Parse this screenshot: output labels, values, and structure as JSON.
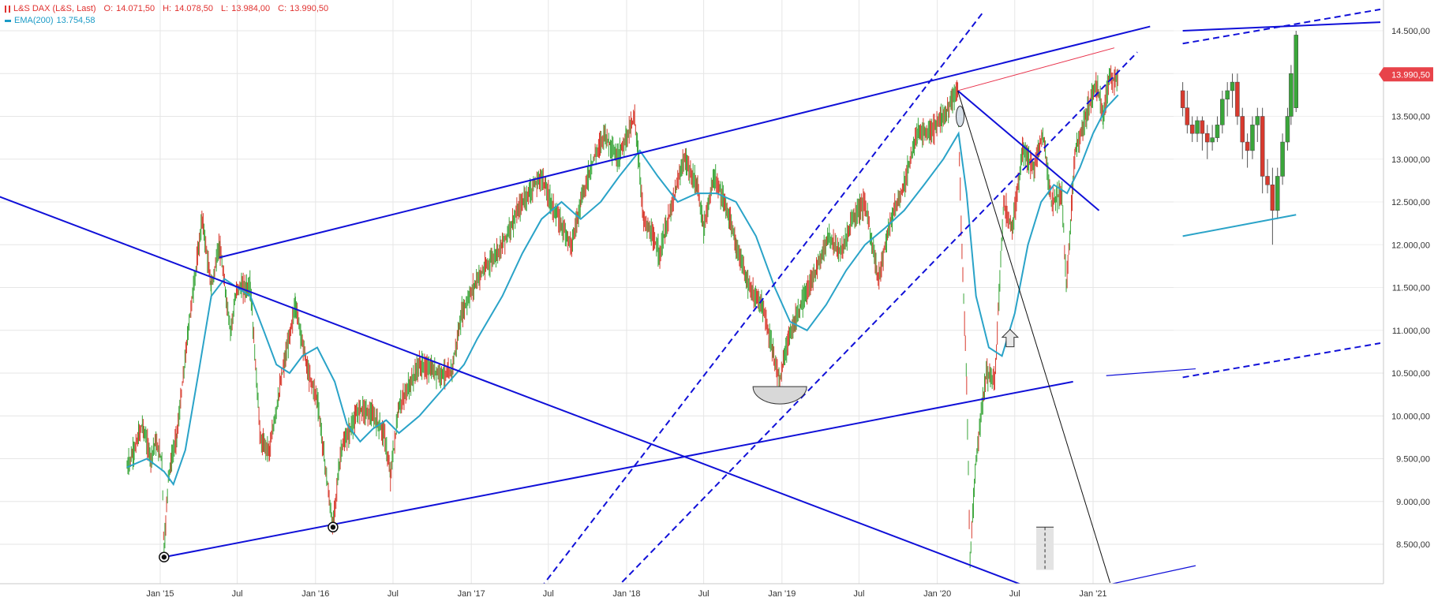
{
  "legend": {
    "instrument": "L&S DAX (L&S, Last)",
    "open_label": "O:",
    "open": "14.071,50",
    "high_label": "H:",
    "high": "14.078,50",
    "low_label": "L:",
    "low": "13.984,00",
    "close_label": "C:",
    "close": "13.990,50",
    "ema_label": "EMA(200)",
    "ema_value": "13.754,58"
  },
  "colors": {
    "up": "#3aa63a",
    "down": "#d83a2e",
    "ema": "#2aa3c8",
    "trendline": "#1010d8",
    "pink_line": "#e8304a",
    "black_line": "#111111",
    "price_tag": "#e8434a",
    "grid": "#e6e6e6"
  },
  "chart_data": {
    "type": "candlestick",
    "title": "",
    "x_ticks": [
      "Jan '15",
      "Jul",
      "Jan '16",
      "Jul",
      "Jan '17",
      "Jul",
      "Jan '18",
      "Jul",
      "Jan '19",
      "Jul",
      "Jan '20",
      "Jul",
      "Jan '21"
    ],
    "x_tick_dates": [
      "2015-01-01",
      "2015-07-01",
      "2016-01-01",
      "2016-07-01",
      "2017-01-01",
      "2017-07-01",
      "2018-01-01",
      "2018-07-01",
      "2019-01-01",
      "2019-07-01",
      "2020-01-01",
      "2020-07-01",
      "2021-01-01"
    ],
    "y_ticks": [
      "14.500,00",
      "14.000,00",
      "13.500,00",
      "13.000,00",
      "12.500,00",
      "12.000,00",
      "11.500,00",
      "11.000,00",
      "10.500,00",
      "10.000,00",
      "9.500,00",
      "9.000,00",
      "8.500,00"
    ],
    "y_tick_values": [
      14500,
      14000,
      13500,
      13000,
      12500,
      12000,
      11500,
      11000,
      10500,
      10000,
      9500,
      9000,
      8500
    ],
    "ylim": [
      8200,
      14750
    ],
    "grid": true,
    "last_price_label": "13.990,50",
    "last_price": 13990.5,
    "price_path": [
      [
        "2014-10-15",
        9400
      ],
      [
        "2014-11-01",
        9600
      ],
      [
        "2014-11-20",
        9900
      ],
      [
        "2014-12-10",
        9500
      ],
      [
        "2014-12-20",
        9700
      ],
      [
        "2015-01-05",
        9500
      ],
      [
        "2015-01-10",
        8400
      ],
      [
        "2015-01-20",
        9300
      ],
      [
        "2015-02-10",
        9800
      ],
      [
        "2015-03-10",
        11100
      ],
      [
        "2015-04-10",
        12300
      ],
      [
        "2015-05-01",
        11500
      ],
      [
        "2015-05-20",
        12000
      ],
      [
        "2015-06-15",
        11000
      ],
      [
        "2015-07-01",
        11500
      ],
      [
        "2015-08-01",
        11500
      ],
      [
        "2015-08-25",
        9700
      ],
      [
        "2015-09-15",
        9600
      ],
      [
        "2015-10-15",
        10500
      ],
      [
        "2015-11-15",
        11300
      ],
      [
        "2015-12-15",
        10500
      ],
      [
        "2016-01-05",
        10200
      ],
      [
        "2016-02-10",
        8700
      ],
      [
        "2016-03-01",
        9600
      ],
      [
        "2016-04-15",
        10100
      ],
      [
        "2016-05-15",
        10000
      ],
      [
        "2016-06-10",
        9800
      ],
      [
        "2016-06-25",
        9300
      ],
      [
        "2016-07-15",
        10100
      ],
      [
        "2016-09-01",
        10600
      ],
      [
        "2016-10-15",
        10500
      ],
      [
        "2016-11-15",
        10500
      ],
      [
        "2016-12-10",
        11200
      ],
      [
        "2017-01-15",
        11600
      ],
      [
        "2017-03-15",
        12000
      ],
      [
        "2017-05-01",
        12500
      ],
      [
        "2017-06-15",
        12800
      ],
      [
        "2017-07-15",
        12400
      ],
      [
        "2017-08-25",
        12000
      ],
      [
        "2017-09-15",
        12500
      ],
      [
        "2017-10-15",
        13000
      ],
      [
        "2017-11-10",
        13300
      ],
      [
        "2017-12-10",
        13000
      ],
      [
        "2018-01-20",
        13500
      ],
      [
        "2018-02-10",
        12300
      ],
      [
        "2018-03-20",
        11900
      ],
      [
        "2018-05-15",
        13000
      ],
      [
        "2018-06-15",
        12700
      ],
      [
        "2018-07-01",
        12200
      ],
      [
        "2018-07-25",
        12800
      ],
      [
        "2018-08-25",
        12400
      ],
      [
        "2018-09-15",
        12000
      ],
      [
        "2018-10-15",
        11500
      ],
      [
        "2018-11-15",
        11300
      ],
      [
        "2018-12-27",
        10400
      ],
      [
        "2019-01-15",
        10900
      ],
      [
        "2019-02-15",
        11300
      ],
      [
        "2019-03-15",
        11600
      ],
      [
        "2019-04-20",
        12100
      ],
      [
        "2019-05-20",
        11900
      ],
      [
        "2019-06-15",
        12300
      ],
      [
        "2019-07-15",
        12500
      ],
      [
        "2019-08-15",
        11600
      ],
      [
        "2019-09-15",
        12300
      ],
      [
        "2019-10-15",
        12700
      ],
      [
        "2019-11-15",
        13300
      ],
      [
        "2019-12-15",
        13300
      ],
      [
        "2020-01-15",
        13500
      ],
      [
        "2020-02-18",
        13800
      ],
      [
        "2020-02-28",
        11900
      ],
      [
        "2020-03-10",
        10400
      ],
      [
        "2020-03-18",
        8300
      ],
      [
        "2020-04-01",
        9500
      ],
      [
        "2020-04-25",
        10500
      ],
      [
        "2020-05-15",
        10400
      ],
      [
        "2020-06-05",
        12500
      ],
      [
        "2020-06-25",
        12200
      ],
      [
        "2020-07-20",
        13100
      ],
      [
        "2020-08-15",
        12900
      ],
      [
        "2020-09-05",
        13300
      ],
      [
        "2020-09-25",
        12500
      ],
      [
        "2020-10-20",
        12600
      ],
      [
        "2020-10-30",
        11500
      ],
      [
        "2020-11-20",
        13100
      ],
      [
        "2020-12-15",
        13500
      ],
      [
        "2021-01-08",
        13900
      ],
      [
        "2021-01-25",
        13500
      ],
      [
        "2021-02-10",
        14000
      ],
      [
        "2021-02-20",
        13900
      ],
      [
        "2021-03-01",
        14000
      ]
    ],
    "ema_path": [
      [
        "2014-10-15",
        9400
      ],
      [
        "2014-12-01",
        9500
      ],
      [
        "2015-01-10",
        9350
      ],
      [
        "2015-02-01",
        9200
      ],
      [
        "2015-03-01",
        9600
      ],
      [
        "2015-04-01",
        10500
      ],
      [
        "2015-05-01",
        11400
      ],
      [
        "2015-06-01",
        11600
      ],
      [
        "2015-07-01",
        11500
      ],
      [
        "2015-08-01",
        11400
      ],
      [
        "2015-09-01",
        11000
      ],
      [
        "2015-10-01",
        10600
      ],
      [
        "2015-11-01",
        10500
      ],
      [
        "2015-12-01",
        10700
      ],
      [
        "2016-01-05",
        10800
      ],
      [
        "2016-02-15",
        10400
      ],
      [
        "2016-03-15",
        9900
      ],
      [
        "2016-04-15",
        9700
      ],
      [
        "2016-05-15",
        9850
      ],
      [
        "2016-06-15",
        9950
      ],
      [
        "2016-07-15",
        9800
      ],
      [
        "2016-09-01",
        10000
      ],
      [
        "2016-10-15",
        10250
      ],
      [
        "2016-12-15",
        10600
      ],
      [
        "2017-01-15",
        10900
      ],
      [
        "2017-03-15",
        11400
      ],
      [
        "2017-05-01",
        11900
      ],
      [
        "2017-06-15",
        12300
      ],
      [
        "2017-08-01",
        12500
      ],
      [
        "2017-09-15",
        12300
      ],
      [
        "2017-11-01",
        12500
      ],
      [
        "2017-12-15",
        12800
      ],
      [
        "2018-02-01",
        13100
      ],
      [
        "2018-03-15",
        12800
      ],
      [
        "2018-05-01",
        12500
      ],
      [
        "2018-06-15",
        12600
      ],
      [
        "2018-08-01",
        12600
      ],
      [
        "2018-09-15",
        12500
      ],
      [
        "2018-11-01",
        12100
      ],
      [
        "2018-12-15",
        11500
      ],
      [
        "2019-01-20",
        11100
      ],
      [
        "2019-03-01",
        11000
      ],
      [
        "2019-04-15",
        11300
      ],
      [
        "2019-06-01",
        11700
      ],
      [
        "2019-07-15",
        12000
      ],
      [
        "2019-09-01",
        12200
      ],
      [
        "2019-10-15",
        12400
      ],
      [
        "2019-12-01",
        12700
      ],
      [
        "2020-01-15",
        13000
      ],
      [
        "2020-02-20",
        13300
      ],
      [
        "2020-03-10",
        12600
      ],
      [
        "2020-04-01",
        11400
      ],
      [
        "2020-05-01",
        10800
      ],
      [
        "2020-06-01",
        10700
      ],
      [
        "2020-07-01",
        11200
      ],
      [
        "2020-08-01",
        12000
      ],
      [
        "2020-09-01",
        12500
      ],
      [
        "2020-10-01",
        12700
      ],
      [
        "2020-11-01",
        12600
      ],
      [
        "2020-12-01",
        12900
      ],
      [
        "2021-01-01",
        13300
      ],
      [
        "2021-02-01",
        13600
      ],
      [
        "2021-03-01",
        13750
      ]
    ],
    "zoom_inset": {
      "x_range": [
        "2020-08-01",
        "2021-03-01"
      ],
      "candles": [
        [
          "2020-08-01",
          13800,
          13900,
          13500,
          13600
        ],
        [
          "2020-08-10",
          13600,
          13800,
          13300,
          13400
        ],
        [
          "2020-08-20",
          13400,
          13500,
          13200,
          13300
        ],
        [
          "2020-08-30",
          13300,
          13500,
          13200,
          13450
        ],
        [
          "2020-09-09",
          13450,
          13500,
          13100,
          13300
        ],
        [
          "2020-09-19",
          13300,
          13400,
          13000,
          13200
        ],
        [
          "2020-09-29",
          13200,
          13400,
          13100,
          13250
        ],
        [
          "2020-10-09",
          13250,
          13500,
          13200,
          13400
        ],
        [
          "2020-10-19",
          13400,
          13800,
          13300,
          13700
        ],
        [
          "2020-10-29",
          13700,
          13900,
          13500,
          13800
        ],
        [
          "2020-11-08",
          13800,
          14000,
          13600,
          13900
        ],
        [
          "2020-11-18",
          13900,
          14000,
          13400,
          13500
        ],
        [
          "2020-11-28",
          13500,
          13600,
          13000,
          13200
        ],
        [
          "2020-12-08",
          13200,
          13300,
          12900,
          13100
        ],
        [
          "2020-12-18",
          13100,
          13500,
          13000,
          13400
        ],
        [
          "2020-12-28",
          13400,
          13600,
          13200,
          13500
        ],
        [
          "2021-01-07",
          13500,
          13600,
          12600,
          12800
        ],
        [
          "2021-01-17",
          12800,
          13000,
          12600,
          12700
        ],
        [
          "2021-01-27",
          12700,
          12900,
          12000,
          12400
        ],
        [
          "2021-02-06",
          12400,
          12900,
          12300,
          12800
        ],
        [
          "2021-02-16",
          12800,
          13300,
          12700,
          13200
        ],
        [
          "2021-02-26",
          13200,
          13600,
          13100,
          13500
        ],
        [
          "2021-03-05",
          13500,
          14100,
          13400,
          14000
        ],
        [
          "2021-03-15",
          13600,
          14500,
          13550,
          14450
        ]
      ],
      "ema": [
        [
          "2020-08-01",
          12100
        ],
        [
          "2021-03-15",
          12350
        ]
      ]
    },
    "trendlines": [
      {
        "name": "upper-channel",
        "style": "solid",
        "from": [
          "2015-05-20",
          11850
        ],
        "to": [
          "2021-05-15",
          14550
        ]
      },
      {
        "name": "descending-long",
        "style": "solid",
        "from": [
          "2013-05-01",
          13000
        ],
        "to": [
          "2020-08-01",
          8000
        ]
      },
      {
        "name": "rising-base",
        "style": "solid",
        "from": [
          "2015-01-10",
          8350
        ],
        "to": [
          "2020-11-15",
          10400
        ]
      },
      {
        "name": "rising-base-extension",
        "style": "solid",
        "from": [
          "2021-02-01",
          10470
        ],
        "to": [
          "2021-08-30",
          10550
        ]
      },
      {
        "name": "descending-from-2020-high",
        "style": "solid",
        "from": [
          "2020-02-18",
          13800
        ],
        "to": [
          "2021-01-15",
          12400
        ]
      },
      {
        "name": "dashed-channel-upper",
        "style": "dashed",
        "from": [
          "2017-05-15",
          7800
        ],
        "to": [
          "2020-04-15",
          14700
        ]
      },
      {
        "name": "dashed-channel-lower",
        "style": "dashed",
        "from": [
          "2017-11-01",
          7800
        ],
        "to": [
          "2021-04-15",
          14250
        ]
      },
      {
        "name": "black-downline",
        "style": "solid",
        "from": [
          "2020-02-18",
          13800
        ],
        "to": [
          "2021-02-10",
          8050
        ]
      },
      {
        "name": "pink-line",
        "style": "solid",
        "from": [
          "2020-02-18",
          13800
        ],
        "to": [
          "2021-02-20",
          14300
        ]
      },
      {
        "name": "bottom-line",
        "style": "solid",
        "from": [
          "2021-01-10",
          8000
        ],
        "to": [
          "2021-08-30",
          8250
        ]
      }
    ],
    "inset_lines": [
      {
        "name": "inset-solid-top",
        "style": "solid",
        "from": [
          "2020-08-01",
          14500
        ],
        "to": [
          "2021-08-30",
          14600
        ]
      },
      {
        "name": "inset-dashed-top",
        "style": "dashed",
        "from": [
          "2020-08-01",
          14350
        ],
        "to": [
          "2021-08-30",
          14750
        ]
      },
      {
        "name": "inset-dashed-bottom",
        "style": "dashed",
        "from": [
          "2020-08-01",
          10450
        ],
        "to": [
          "2021-08-30",
          10850
        ]
      }
    ],
    "markers": [
      {
        "name": "low-marker-2015",
        "date": "2015-01-10",
        "value": 8350,
        "shape": "target"
      },
      {
        "name": "low-marker-2016",
        "date": "2016-02-11",
        "value": 8700,
        "shape": "target"
      },
      {
        "name": "rounded-bottom",
        "date": "2018-12-27",
        "value": 10250,
        "shape": "bowl"
      },
      {
        "name": "ellipse-high",
        "date": "2020-02-18",
        "value": 13500,
        "shape": "ellipse"
      },
      {
        "name": "up-arrow",
        "date": "2020-06-20",
        "value": 10900,
        "shape": "arrow"
      }
    ],
    "marker_bar": {
      "name": "dashed-range-bar",
      "date": "2020-09-10",
      "from": 8200,
      "to": 8700
    }
  }
}
